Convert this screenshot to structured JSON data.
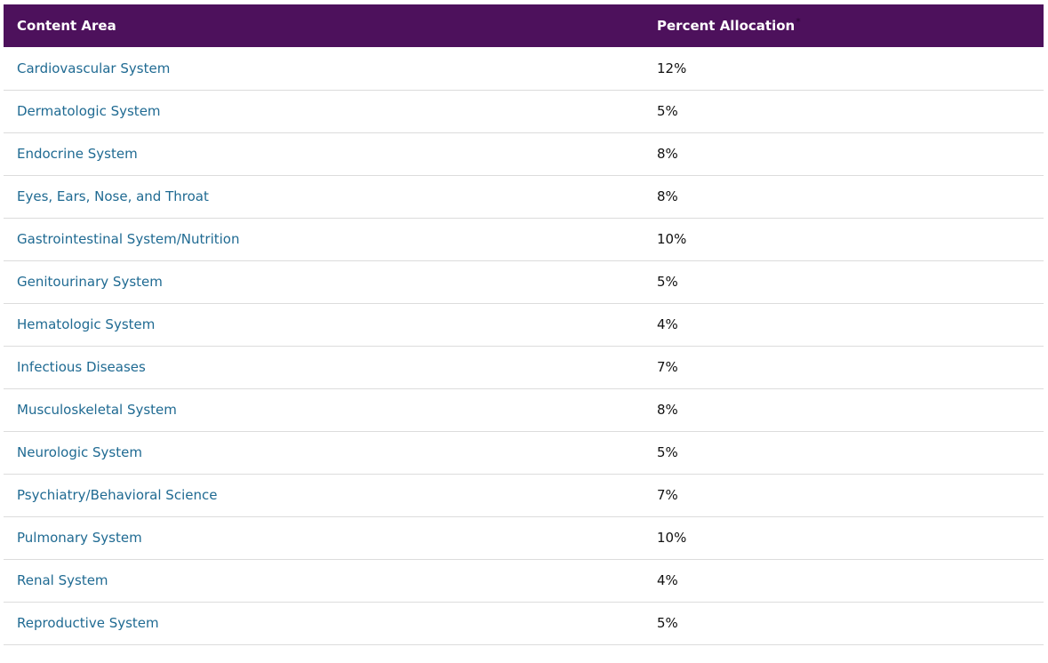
{
  "table": {
    "headers": {
      "content_area": "Content Area",
      "percent_allocation": "Percent Allocation",
      "footnote_mark": "*"
    },
    "rows": [
      {
        "area": "Cardiovascular System",
        "percent": "12%"
      },
      {
        "area": "Dermatologic System",
        "percent": "5%"
      },
      {
        "area": "Endocrine System",
        "percent": "8%"
      },
      {
        "area": "Eyes, Ears, Nose, and Throat",
        "percent": "8%"
      },
      {
        "area": "Gastrointestinal System/Nutrition",
        "percent": "10%"
      },
      {
        "area": "Genitourinary System",
        "percent": "5%"
      },
      {
        "area": "Hematologic System",
        "percent": "4%"
      },
      {
        "area": "Infectious Diseases",
        "percent": "7%"
      },
      {
        "area": "Musculoskeletal System",
        "percent": "8%"
      },
      {
        "area": "Neurologic System",
        "percent": "5%"
      },
      {
        "area": "Psychiatry/Behavioral Science",
        "percent": "7%"
      },
      {
        "area": "Pulmonary System",
        "percent": "10%"
      },
      {
        "area": "Renal System",
        "percent": "4%"
      },
      {
        "area": "Reproductive System",
        "percent": "5%"
      }
    ]
  },
  "colors": {
    "header_bg": "#4d115c",
    "header_text": "#ffffff",
    "link": "#1f6a92",
    "value_text": "#111111",
    "row_divider": "#dcdcdc"
  }
}
